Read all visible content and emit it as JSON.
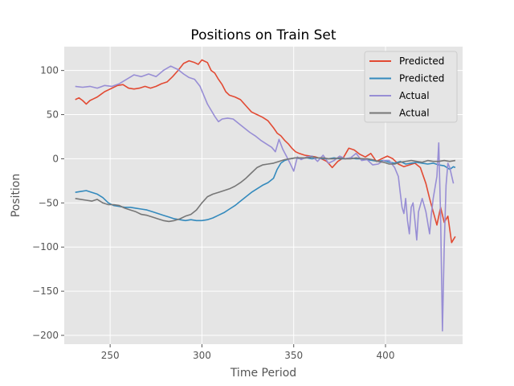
{
  "chart_data": {
    "type": "line",
    "title": "Positions on Train Set",
    "xlabel": "Time Period",
    "ylabel": "Position",
    "xlim": [
      225,
      442
    ],
    "ylim": [
      -210,
      127
    ],
    "xticks": [
      250,
      300,
      350,
      400
    ],
    "yticks": [
      100,
      50,
      0,
      -50,
      -100,
      -150,
      -200
    ],
    "ytick_labels": [
      "100",
      "50",
      "0",
      "−50",
      "−100",
      "−150",
      "−200"
    ],
    "grid": true,
    "legend_position": "top-right",
    "series": [
      {
        "name": "Predicted",
        "color": "#E24A33",
        "points": [
          [
            231,
            67
          ],
          [
            233,
            69
          ],
          [
            235,
            66
          ],
          [
            237,
            62
          ],
          [
            239,
            66
          ],
          [
            241,
            68
          ],
          [
            243,
            70
          ],
          [
            245,
            73
          ],
          [
            247,
            76
          ],
          [
            249,
            78
          ],
          [
            251,
            80
          ],
          [
            254,
            83
          ],
          [
            257,
            84
          ],
          [
            260,
            80
          ],
          [
            263,
            79
          ],
          [
            266,
            80
          ],
          [
            269,
            82
          ],
          [
            272,
            80
          ],
          [
            275,
            82
          ],
          [
            278,
            85
          ],
          [
            281,
            87
          ],
          [
            284,
            93
          ],
          [
            287,
            100
          ],
          [
            290,
            108
          ],
          [
            293,
            111
          ],
          [
            296,
            109
          ],
          [
            298,
            107
          ],
          [
            300,
            112
          ],
          [
            303,
            109
          ],
          [
            305,
            100
          ],
          [
            307,
            97
          ],
          [
            309,
            90
          ],
          [
            311,
            84
          ],
          [
            313,
            76
          ],
          [
            315,
            72
          ],
          [
            318,
            70
          ],
          [
            321,
            67
          ],
          [
            324,
            60
          ],
          [
            327,
            53
          ],
          [
            330,
            50
          ],
          [
            333,
            47
          ],
          [
            336,
            43
          ],
          [
            339,
            35
          ],
          [
            341,
            29
          ],
          [
            343,
            26
          ],
          [
            345,
            21
          ],
          [
            347,
            17
          ],
          [
            349,
            12
          ],
          [
            351,
            8
          ],
          [
            353,
            6
          ],
          [
            356,
            4
          ],
          [
            359,
            3
          ],
          [
            362,
            2
          ],
          [
            365,
            0
          ],
          [
            368,
            -3
          ],
          [
            371,
            -10
          ],
          [
            374,
            -3
          ],
          [
            377,
            1
          ],
          [
            380,
            12
          ],
          [
            383,
            10
          ],
          [
            386,
            5
          ],
          [
            389,
            2
          ],
          [
            392,
            6
          ],
          [
            395,
            -3
          ],
          [
            398,
            0
          ],
          [
            401,
            3
          ],
          [
            404,
            0
          ],
          [
            407,
            -6
          ],
          [
            410,
            -9
          ],
          [
            413,
            -7
          ],
          [
            416,
            -5
          ],
          [
            419,
            -10
          ],
          [
            422,
            -28
          ],
          [
            424,
            -45
          ],
          [
            426,
            -60
          ],
          [
            428,
            -75
          ],
          [
            430,
            -55
          ],
          [
            432,
            -72
          ],
          [
            434,
            -65
          ],
          [
            436,
            -95
          ],
          [
            438,
            -88
          ]
        ]
      },
      {
        "name": "Predicted",
        "color": "#348ABD",
        "points": [
          [
            231,
            -38
          ],
          [
            234,
            -37
          ],
          [
            237,
            -36
          ],
          [
            240,
            -38
          ],
          [
            243,
            -40
          ],
          [
            246,
            -44
          ],
          [
            249,
            -50
          ],
          [
            252,
            -53
          ],
          [
            255,
            -54
          ],
          [
            258,
            -55
          ],
          [
            261,
            -55
          ],
          [
            264,
            -56
          ],
          [
            267,
            -57
          ],
          [
            270,
            -58
          ],
          [
            273,
            -60
          ],
          [
            276,
            -62
          ],
          [
            279,
            -64
          ],
          [
            282,
            -66
          ],
          [
            285,
            -68
          ],
          [
            288,
            -69
          ],
          [
            291,
            -70
          ],
          [
            294,
            -69
          ],
          [
            297,
            -70
          ],
          [
            300,
            -70
          ],
          [
            303,
            -69
          ],
          [
            306,
            -67
          ],
          [
            309,
            -64
          ],
          [
            312,
            -61
          ],
          [
            315,
            -57
          ],
          [
            318,
            -53
          ],
          [
            321,
            -48
          ],
          [
            324,
            -43
          ],
          [
            327,
            -38
          ],
          [
            330,
            -34
          ],
          [
            333,
            -30
          ],
          [
            336,
            -27
          ],
          [
            339,
            -22
          ],
          [
            341,
            -12
          ],
          [
            343,
            -5
          ],
          [
            345,
            -2
          ],
          [
            348,
            0
          ],
          [
            351,
            1
          ],
          [
            354,
            0
          ],
          [
            357,
            1
          ],
          [
            360,
            0
          ],
          [
            363,
            1
          ],
          [
            366,
            0
          ],
          [
            369,
            0
          ],
          [
            372,
            1
          ],
          [
            375,
            0
          ],
          [
            378,
            0
          ],
          [
            381,
            1
          ],
          [
            384,
            0
          ],
          [
            387,
            0
          ],
          [
            390,
            -1
          ],
          [
            393,
            -2
          ],
          [
            396,
            -3
          ],
          [
            399,
            -2
          ],
          [
            402,
            -4
          ],
          [
            405,
            -5
          ],
          [
            408,
            -3
          ],
          [
            411,
            -6
          ],
          [
            414,
            -5
          ],
          [
            417,
            -4
          ],
          [
            420,
            -5
          ],
          [
            423,
            -6
          ],
          [
            426,
            -5
          ],
          [
            429,
            -7
          ],
          [
            432,
            -8
          ],
          [
            435,
            -12
          ],
          [
            437,
            -9
          ],
          [
            438,
            -10
          ]
        ]
      },
      {
        "name": "Actual",
        "color": "#988ED5",
        "points": [
          [
            231,
            82
          ],
          [
            235,
            81
          ],
          [
            239,
            82
          ],
          [
            243,
            80
          ],
          [
            247,
            83
          ],
          [
            251,
            82
          ],
          [
            255,
            85
          ],
          [
            259,
            90
          ],
          [
            263,
            95
          ],
          [
            267,
            93
          ],
          [
            271,
            96
          ],
          [
            275,
            93
          ],
          [
            279,
            100
          ],
          [
            283,
            105
          ],
          [
            285,
            103
          ],
          [
            287,
            101
          ],
          [
            290,
            96
          ],
          [
            293,
            92
          ],
          [
            296,
            90
          ],
          [
            299,
            82
          ],
          [
            301,
            72
          ],
          [
            303,
            62
          ],
          [
            305,
            55
          ],
          [
            307,
            48
          ],
          [
            309,
            42
          ],
          [
            311,
            45
          ],
          [
            314,
            46
          ],
          [
            317,
            45
          ],
          [
            320,
            40
          ],
          [
            323,
            35
          ],
          [
            326,
            30
          ],
          [
            329,
            26
          ],
          [
            332,
            21
          ],
          [
            335,
            17
          ],
          [
            338,
            13
          ],
          [
            340,
            8
          ],
          [
            342,
            22
          ],
          [
            344,
            11
          ],
          [
            346,
            3
          ],
          [
            348,
            -5
          ],
          [
            350,
            -14
          ],
          [
            352,
            2
          ],
          [
            354,
            -1
          ],
          [
            357,
            2
          ],
          [
            360,
            3
          ],
          [
            363,
            -3
          ],
          [
            366,
            4
          ],
          [
            369,
            -5
          ],
          [
            372,
            -2
          ],
          [
            375,
            3
          ],
          [
            378,
            0
          ],
          [
            381,
            1
          ],
          [
            384,
            6
          ],
          [
            387,
            -2
          ],
          [
            390,
            -1
          ],
          [
            393,
            -7
          ],
          [
            396,
            -6
          ],
          [
            399,
            -2
          ],
          [
            402,
            -2
          ],
          [
            405,
            -10
          ],
          [
            407,
            -20
          ],
          [
            408,
            -38
          ],
          [
            409,
            -55
          ],
          [
            410,
            -62
          ],
          [
            411,
            -45
          ],
          [
            412,
            -70
          ],
          [
            413,
            -85
          ],
          [
            414,
            -55
          ],
          [
            415,
            -50
          ],
          [
            416,
            -70
          ],
          [
            417,
            -92
          ],
          [
            418,
            -60
          ],
          [
            420,
            -45
          ],
          [
            422,
            -60
          ],
          [
            424,
            -85
          ],
          [
            425,
            -63
          ],
          [
            426,
            -45
          ],
          [
            428,
            -20
          ],
          [
            429,
            18
          ],
          [
            430,
            -65
          ],
          [
            431,
            -195
          ],
          [
            432,
            -100
          ],
          [
            433,
            -30
          ],
          [
            434,
            -5
          ],
          [
            435,
            -10
          ],
          [
            437,
            -28
          ]
        ]
      },
      {
        "name": "Actual",
        "color": "#777777",
        "points": [
          [
            231,
            -45
          ],
          [
            234,
            -46
          ],
          [
            237,
            -47
          ],
          [
            240,
            -48
          ],
          [
            243,
            -46
          ],
          [
            246,
            -50
          ],
          [
            249,
            -52
          ],
          [
            252,
            -52
          ],
          [
            255,
            -53
          ],
          [
            258,
            -56
          ],
          [
            261,
            -58
          ],
          [
            264,
            -60
          ],
          [
            267,
            -63
          ],
          [
            270,
            -64
          ],
          [
            273,
            -66
          ],
          [
            276,
            -68
          ],
          [
            279,
            -70
          ],
          [
            282,
            -71
          ],
          [
            285,
            -70
          ],
          [
            288,
            -68
          ],
          [
            291,
            -65
          ],
          [
            294,
            -63
          ],
          [
            297,
            -58
          ],
          [
            300,
            -50
          ],
          [
            303,
            -43
          ],
          [
            306,
            -40
          ],
          [
            309,
            -38
          ],
          [
            312,
            -36
          ],
          [
            315,
            -34
          ],
          [
            318,
            -31
          ],
          [
            321,
            -27
          ],
          [
            324,
            -22
          ],
          [
            327,
            -16
          ],
          [
            330,
            -10
          ],
          [
            333,
            -7
          ],
          [
            336,
            -6
          ],
          [
            339,
            -5
          ],
          [
            342,
            -3
          ],
          [
            345,
            -1
          ],
          [
            348,
            0
          ],
          [
            351,
            1
          ],
          [
            354,
            1
          ],
          [
            357,
            1
          ],
          [
            360,
            2
          ],
          [
            363,
            1
          ],
          [
            366,
            1
          ],
          [
            369,
            0
          ],
          [
            372,
            0
          ],
          [
            375,
            1
          ],
          [
            378,
            0
          ],
          [
            381,
            0
          ],
          [
            384,
            1
          ],
          [
            387,
            0
          ],
          [
            390,
            0
          ],
          [
            393,
            -1
          ],
          [
            396,
            -3
          ],
          [
            399,
            -4
          ],
          [
            402,
            -6
          ],
          [
            405,
            -6
          ],
          [
            408,
            -4
          ],
          [
            411,
            -3
          ],
          [
            414,
            -2
          ],
          [
            417,
            -3
          ],
          [
            420,
            -4
          ],
          [
            423,
            -2
          ],
          [
            426,
            -3
          ],
          [
            429,
            -3
          ],
          [
            432,
            -2
          ],
          [
            435,
            -3
          ],
          [
            438,
            -2
          ]
        ]
      }
    ]
  }
}
